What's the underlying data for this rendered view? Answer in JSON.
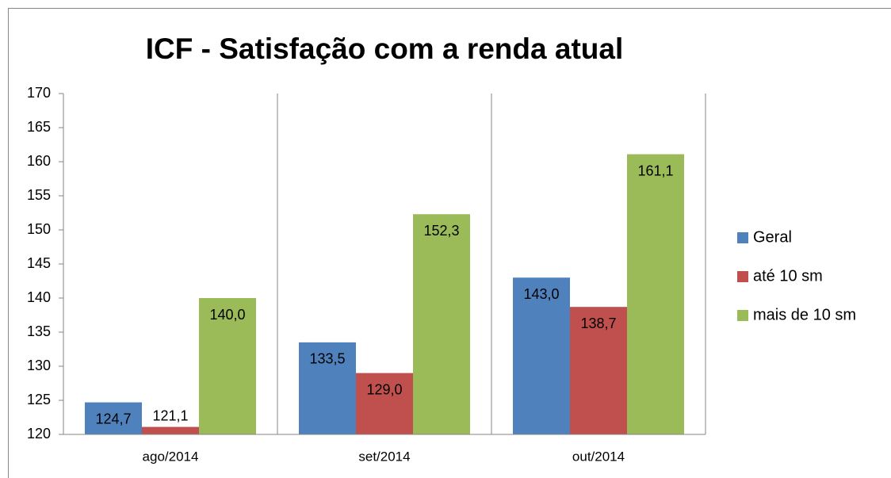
{
  "chart_data": {
    "type": "bar",
    "title": "ICF - Satisfação com a renda atual",
    "categories": [
      "ago/2014",
      "set/2014",
      "out/2014"
    ],
    "series": [
      {
        "name": "Geral",
        "color": "#4f81bd",
        "values": [
          124.7,
          133.5,
          143.0
        ],
        "value_labels": [
          "124,7",
          "133,5",
          "143,0"
        ]
      },
      {
        "name": "até 10 sm",
        "color": "#c0504d",
        "values": [
          121.1,
          129.0,
          138.7
        ],
        "value_labels": [
          "121,1",
          "129,0",
          "138,7"
        ]
      },
      {
        "name": "mais de 10 sm",
        "color": "#9bbb59",
        "values": [
          140.0,
          152.3,
          161.1
        ],
        "value_labels": [
          "140,0",
          "152,3",
          "161,1"
        ]
      }
    ],
    "ylim": [
      120,
      170
    ],
    "yticks": [
      120,
      125,
      130,
      135,
      140,
      145,
      150,
      155,
      160,
      165,
      170
    ],
    "legend": "right"
  }
}
